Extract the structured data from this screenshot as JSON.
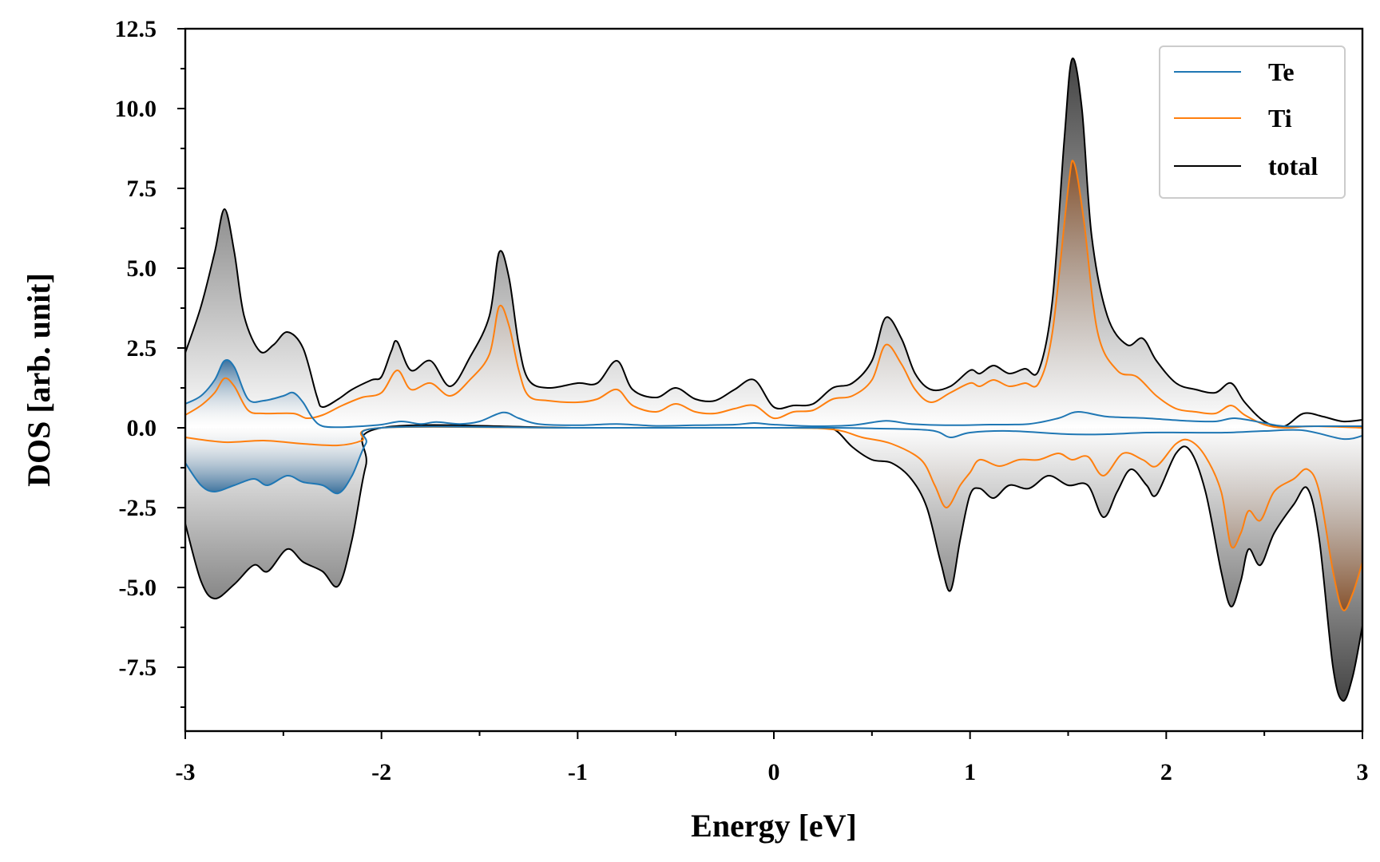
{
  "chart_data": {
    "type": "line",
    "title": "",
    "xlabel": "Energy [eV]",
    "ylabel": "DOS [arb. unit]",
    "xlim": [
      -3,
      3
    ],
    "ylim": [
      -9.5,
      12.5
    ],
    "x_ticks": [
      "-3",
      "-2",
      "-1",
      "0",
      "1",
      "2",
      "3"
    ],
    "y_ticks": [
      "12.5",
      "10.0",
      "7.5",
      "5.0",
      "2.5",
      "0.0",
      "-2.5",
      "-5.0",
      "-7.5"
    ],
    "grid": false,
    "legend_position": "top-right",
    "series": [
      {
        "name": "Te",
        "color": "#1f77b4",
        "spin_up": [
          [
            -3,
            0.75
          ],
          [
            -2.92,
            1.0
          ],
          [
            -2.85,
            1.5
          ],
          [
            -2.8,
            2.1
          ],
          [
            -2.75,
            1.9
          ],
          [
            -2.68,
            0.9
          ],
          [
            -2.6,
            0.85
          ],
          [
            -2.5,
            1.0
          ],
          [
            -2.45,
            1.1
          ],
          [
            -2.4,
            0.8
          ],
          [
            -2.35,
            0.3
          ],
          [
            -2.3,
            0.05
          ],
          [
            -2.2,
            0.02
          ],
          [
            -2.1,
            0.05
          ],
          [
            -2.0,
            0.1
          ],
          [
            -1.9,
            0.2
          ],
          [
            -1.8,
            0.12
          ],
          [
            -1.72,
            0.18
          ],
          [
            -1.6,
            0.12
          ],
          [
            -1.5,
            0.2
          ],
          [
            -1.38,
            0.48
          ],
          [
            -1.3,
            0.3
          ],
          [
            -1.2,
            0.12
          ],
          [
            -1.0,
            0.08
          ],
          [
            -0.8,
            0.12
          ],
          [
            -0.6,
            0.06
          ],
          [
            -0.4,
            0.08
          ],
          [
            -0.2,
            0.1
          ],
          [
            -0.1,
            0.15
          ],
          [
            0.0,
            0.1
          ],
          [
            0.2,
            0.05
          ],
          [
            0.4,
            0.08
          ],
          [
            0.57,
            0.22
          ],
          [
            0.7,
            0.12
          ],
          [
            0.9,
            0.08
          ],
          [
            1.1,
            0.1
          ],
          [
            1.3,
            0.12
          ],
          [
            1.45,
            0.3
          ],
          [
            1.55,
            0.5
          ],
          [
            1.7,
            0.35
          ],
          [
            1.9,
            0.3
          ],
          [
            2.1,
            0.22
          ],
          [
            2.25,
            0.2
          ],
          [
            2.35,
            0.3
          ],
          [
            2.5,
            0.15
          ],
          [
            2.6,
            0.05
          ],
          [
            2.8,
            0.05
          ],
          [
            3.0,
            0.05
          ]
        ],
        "spin_down": [
          [
            -3,
            -1.1
          ],
          [
            -2.92,
            -1.8
          ],
          [
            -2.85,
            -2.0
          ],
          [
            -2.75,
            -1.8
          ],
          [
            -2.65,
            -1.6
          ],
          [
            -2.58,
            -1.8
          ],
          [
            -2.48,
            -1.5
          ],
          [
            -2.4,
            -1.7
          ],
          [
            -2.3,
            -1.8
          ],
          [
            -2.22,
            -2.05
          ],
          [
            -2.15,
            -1.5
          ],
          [
            -2.08,
            -0.5
          ],
          [
            -2.0,
            0.0
          ],
          [
            -1.0,
            0.0
          ],
          [
            0.0,
            0.0
          ],
          [
            0.3,
            0.0
          ],
          [
            0.5,
            -0.02
          ],
          [
            0.8,
            -0.08
          ],
          [
            0.9,
            -0.3
          ],
          [
            1.0,
            -0.15
          ],
          [
            1.2,
            -0.1
          ],
          [
            1.5,
            -0.2
          ],
          [
            1.7,
            -0.2
          ],
          [
            1.9,
            -0.15
          ],
          [
            2.1,
            -0.15
          ],
          [
            2.3,
            -0.15
          ],
          [
            2.5,
            -0.1
          ],
          [
            2.7,
            -0.08
          ],
          [
            2.9,
            -0.35
          ],
          [
            3.0,
            -0.25
          ]
        ]
      },
      {
        "name": "Ti",
        "color": "#ff7f0e",
        "spin_up": [
          [
            -3,
            0.4
          ],
          [
            -2.92,
            0.7
          ],
          [
            -2.85,
            1.1
          ],
          [
            -2.8,
            1.55
          ],
          [
            -2.75,
            1.3
          ],
          [
            -2.68,
            0.55
          ],
          [
            -2.6,
            0.45
          ],
          [
            -2.45,
            0.45
          ],
          [
            -2.38,
            0.3
          ],
          [
            -2.3,
            0.4
          ],
          [
            -2.2,
            0.7
          ],
          [
            -2.1,
            0.95
          ],
          [
            -2.0,
            1.1
          ],
          [
            -1.92,
            1.8
          ],
          [
            -1.85,
            1.2
          ],
          [
            -1.75,
            1.4
          ],
          [
            -1.65,
            1.0
          ],
          [
            -1.55,
            1.5
          ],
          [
            -1.45,
            2.3
          ],
          [
            -1.4,
            3.8
          ],
          [
            -1.35,
            3.2
          ],
          [
            -1.3,
            1.8
          ],
          [
            -1.25,
            1.0
          ],
          [
            -1.15,
            0.85
          ],
          [
            -1.0,
            0.8
          ],
          [
            -0.9,
            0.9
          ],
          [
            -0.8,
            1.2
          ],
          [
            -0.72,
            0.7
          ],
          [
            -0.6,
            0.5
          ],
          [
            -0.5,
            0.75
          ],
          [
            -0.4,
            0.5
          ],
          [
            -0.3,
            0.45
          ],
          [
            -0.2,
            0.6
          ],
          [
            -0.1,
            0.7
          ],
          [
            0.0,
            0.3
          ],
          [
            0.1,
            0.5
          ],
          [
            0.2,
            0.55
          ],
          [
            0.3,
            0.9
          ],
          [
            0.4,
            1.0
          ],
          [
            0.5,
            1.5
          ],
          [
            0.57,
            2.6
          ],
          [
            0.65,
            2.0
          ],
          [
            0.72,
            1.2
          ],
          [
            0.8,
            0.8
          ],
          [
            0.9,
            1.1
          ],
          [
            1.0,
            1.4
          ],
          [
            1.05,
            1.3
          ],
          [
            1.12,
            1.5
          ],
          [
            1.2,
            1.3
          ],
          [
            1.28,
            1.4
          ],
          [
            1.35,
            1.4
          ],
          [
            1.42,
            3.0
          ],
          [
            1.5,
            7.5
          ],
          [
            1.53,
            8.3
          ],
          [
            1.58,
            6.5
          ],
          [
            1.65,
            3.0
          ],
          [
            1.75,
            1.8
          ],
          [
            1.85,
            1.6
          ],
          [
            1.95,
            1.0
          ],
          [
            2.05,
            0.6
          ],
          [
            2.15,
            0.5
          ],
          [
            2.25,
            0.45
          ],
          [
            2.33,
            0.7
          ],
          [
            2.4,
            0.4
          ],
          [
            2.5,
            0.1
          ],
          [
            2.6,
            0.0
          ],
          [
            2.75,
            0.05
          ],
          [
            3.0,
            0.0
          ]
        ],
        "spin_down": [
          [
            -3,
            -0.3
          ],
          [
            -2.8,
            -0.45
          ],
          [
            -2.6,
            -0.4
          ],
          [
            -2.4,
            -0.5
          ],
          [
            -2.22,
            -0.55
          ],
          [
            -2.1,
            -0.4
          ],
          [
            -2.0,
            0.0
          ],
          [
            -1.0,
            0.0
          ],
          [
            0.0,
            0.0
          ],
          [
            0.3,
            -0.05
          ],
          [
            0.45,
            -0.3
          ],
          [
            0.6,
            -0.5
          ],
          [
            0.75,
            -1.0
          ],
          [
            0.82,
            -1.8
          ],
          [
            0.88,
            -2.5
          ],
          [
            0.95,
            -1.8
          ],
          [
            1.0,
            -1.4
          ],
          [
            1.05,
            -1.0
          ],
          [
            1.15,
            -1.2
          ],
          [
            1.25,
            -1.0
          ],
          [
            1.35,
            -1.0
          ],
          [
            1.45,
            -0.8
          ],
          [
            1.52,
            -1.0
          ],
          [
            1.6,
            -0.9
          ],
          [
            1.68,
            -1.5
          ],
          [
            1.78,
            -0.8
          ],
          [
            1.88,
            -1.0
          ],
          [
            1.95,
            -1.2
          ],
          [
            2.05,
            -0.5
          ],
          [
            2.12,
            -0.4
          ],
          [
            2.2,
            -0.9
          ],
          [
            2.28,
            -2.0
          ],
          [
            2.33,
            -3.7
          ],
          [
            2.38,
            -3.3
          ],
          [
            2.42,
            -2.6
          ],
          [
            2.48,
            -2.9
          ],
          [
            2.55,
            -2.0
          ],
          [
            2.65,
            -1.6
          ],
          [
            2.72,
            -1.3
          ],
          [
            2.78,
            -2.0
          ],
          [
            2.85,
            -4.5
          ],
          [
            2.9,
            -5.7
          ],
          [
            2.95,
            -5.2
          ],
          [
            3.0,
            -4.2
          ]
        ]
      },
      {
        "name": "total",
        "color": "#000000",
        "spin_up": [
          [
            -3,
            2.35
          ],
          [
            -2.92,
            3.8
          ],
          [
            -2.85,
            5.5
          ],
          [
            -2.8,
            6.85
          ],
          [
            -2.75,
            5.5
          ],
          [
            -2.7,
            3.5
          ],
          [
            -2.62,
            2.4
          ],
          [
            -2.55,
            2.6
          ],
          [
            -2.48,
            3.0
          ],
          [
            -2.4,
            2.5
          ],
          [
            -2.33,
            1.0
          ],
          [
            -2.3,
            0.65
          ],
          [
            -2.22,
            0.9
          ],
          [
            -2.15,
            1.2
          ],
          [
            -2.05,
            1.5
          ],
          [
            -2.0,
            1.6
          ],
          [
            -1.95,
            2.4
          ],
          [
            -1.92,
            2.7
          ],
          [
            -1.85,
            1.8
          ],
          [
            -1.75,
            2.1
          ],
          [
            -1.65,
            1.3
          ],
          [
            -1.55,
            2.2
          ],
          [
            -1.45,
            3.5
          ],
          [
            -1.4,
            5.5
          ],
          [
            -1.35,
            4.7
          ],
          [
            -1.3,
            2.6
          ],
          [
            -1.25,
            1.5
          ],
          [
            -1.15,
            1.25
          ],
          [
            -1.0,
            1.4
          ],
          [
            -0.9,
            1.4
          ],
          [
            -0.8,
            2.1
          ],
          [
            -0.72,
            1.2
          ],
          [
            -0.6,
            0.95
          ],
          [
            -0.5,
            1.25
          ],
          [
            -0.4,
            0.9
          ],
          [
            -0.3,
            0.85
          ],
          [
            -0.2,
            1.2
          ],
          [
            -0.1,
            1.5
          ],
          [
            0.0,
            0.65
          ],
          [
            0.1,
            0.7
          ],
          [
            0.2,
            0.75
          ],
          [
            0.3,
            1.25
          ],
          [
            0.4,
            1.4
          ],
          [
            0.5,
            2.1
          ],
          [
            0.57,
            3.45
          ],
          [
            0.65,
            2.8
          ],
          [
            0.72,
            1.7
          ],
          [
            0.8,
            1.2
          ],
          [
            0.9,
            1.3
          ],
          [
            1.0,
            1.8
          ],
          [
            1.05,
            1.7
          ],
          [
            1.12,
            1.95
          ],
          [
            1.2,
            1.7
          ],
          [
            1.28,
            1.85
          ],
          [
            1.35,
            1.8
          ],
          [
            1.42,
            4.0
          ],
          [
            1.48,
            9.0
          ],
          [
            1.52,
            11.55
          ],
          [
            1.57,
            10.0
          ],
          [
            1.62,
            6.0
          ],
          [
            1.7,
            3.5
          ],
          [
            1.8,
            2.6
          ],
          [
            1.88,
            2.8
          ],
          [
            1.95,
            2.1
          ],
          [
            2.05,
            1.4
          ],
          [
            2.15,
            1.2
          ],
          [
            2.25,
            1.1
          ],
          [
            2.33,
            1.4
          ],
          [
            2.4,
            0.8
          ],
          [
            2.5,
            0.2
          ],
          [
            2.6,
            0.05
          ],
          [
            2.7,
            0.45
          ],
          [
            2.8,
            0.35
          ],
          [
            2.9,
            0.2
          ],
          [
            3.0,
            0.25
          ]
        ],
        "spin_down": [
          [
            -3,
            -3.0
          ],
          [
            -2.92,
            -4.8
          ],
          [
            -2.85,
            -5.35
          ],
          [
            -2.75,
            -4.9
          ],
          [
            -2.65,
            -4.3
          ],
          [
            -2.58,
            -4.5
          ],
          [
            -2.48,
            -3.8
          ],
          [
            -2.4,
            -4.2
          ],
          [
            -2.3,
            -4.5
          ],
          [
            -2.22,
            -4.95
          ],
          [
            -2.15,
            -3.5
          ],
          [
            -2.08,
            -1.2
          ],
          [
            -2.0,
            0.0
          ],
          [
            -1.0,
            0.0
          ],
          [
            0.0,
            0.0
          ],
          [
            0.25,
            0.0
          ],
          [
            0.32,
            -0.1
          ],
          [
            0.4,
            -0.6
          ],
          [
            0.5,
            -1.0
          ],
          [
            0.6,
            -1.1
          ],
          [
            0.7,
            -1.6
          ],
          [
            0.78,
            -2.5
          ],
          [
            0.85,
            -4.2
          ],
          [
            0.9,
            -5.1
          ],
          [
            0.95,
            -3.5
          ],
          [
            1.0,
            -2.1
          ],
          [
            1.05,
            -1.9
          ],
          [
            1.12,
            -2.2
          ],
          [
            1.2,
            -1.8
          ],
          [
            1.3,
            -1.9
          ],
          [
            1.4,
            -1.5
          ],
          [
            1.5,
            -1.8
          ],
          [
            1.6,
            -1.8
          ],
          [
            1.68,
            -2.8
          ],
          [
            1.75,
            -2.0
          ],
          [
            1.82,
            -1.3
          ],
          [
            1.9,
            -1.8
          ],
          [
            1.95,
            -2.1
          ],
          [
            2.05,
            -0.8
          ],
          [
            2.12,
            -0.7
          ],
          [
            2.2,
            -2.0
          ],
          [
            2.28,
            -4.5
          ],
          [
            2.33,
            -5.6
          ],
          [
            2.38,
            -4.8
          ],
          [
            2.42,
            -3.8
          ],
          [
            2.48,
            -4.3
          ],
          [
            2.55,
            -3.3
          ],
          [
            2.65,
            -2.4
          ],
          [
            2.72,
            -1.9
          ],
          [
            2.78,
            -3.5
          ],
          [
            2.85,
            -7.5
          ],
          [
            2.9,
            -8.55
          ],
          [
            2.95,
            -7.8
          ],
          [
            3.0,
            -6.2
          ]
        ]
      }
    ]
  }
}
